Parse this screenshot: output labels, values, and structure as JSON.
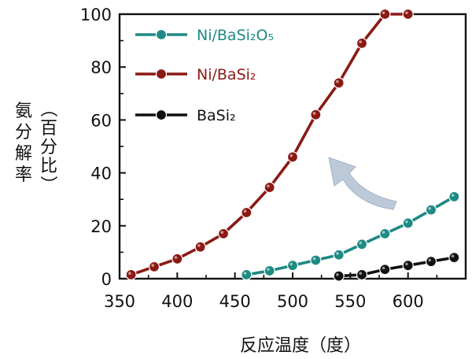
{
  "chart_data": {
    "type": "line",
    "xlabel": "反应温度（度）",
    "ylabel": "氨分解率",
    "ylabel_unit": "（百分比）",
    "xlim": [
      350,
      650
    ],
    "ylim": [
      0,
      100
    ],
    "xticks": [
      350,
      400,
      450,
      500,
      550,
      600
    ],
    "yticks": [
      0,
      20,
      40,
      60,
      80,
      100
    ],
    "legend_position": "top-left",
    "series": [
      {
        "name": "Ni/BaSi₂O₅",
        "color": "#1e8a84",
        "x": [
          460,
          480,
          500,
          520,
          540,
          560,
          580,
          600,
          620,
          640
        ],
        "y": [
          1.5,
          3,
          5,
          7,
          9,
          13,
          17,
          21,
          26,
          31
        ]
      },
      {
        "name": "Ni/BaSi₂",
        "color": "#8b1a14",
        "x": [
          360,
          380,
          400,
          420,
          440,
          460,
          480,
          500,
          520,
          540,
          560,
          580,
          600
        ],
        "y": [
          1.5,
          4.5,
          7.5,
          12,
          17,
          25,
          34.5,
          46,
          62,
          74,
          89,
          100,
          100
        ]
      },
      {
        "name": "BaSi₂",
        "color": "#111111",
        "x": [
          540,
          560,
          580,
          600,
          620,
          640
        ],
        "y": [
          1,
          1.5,
          3.5,
          5,
          6.5,
          8
        ]
      }
    ]
  },
  "arrow_color": "#b9c7d6"
}
